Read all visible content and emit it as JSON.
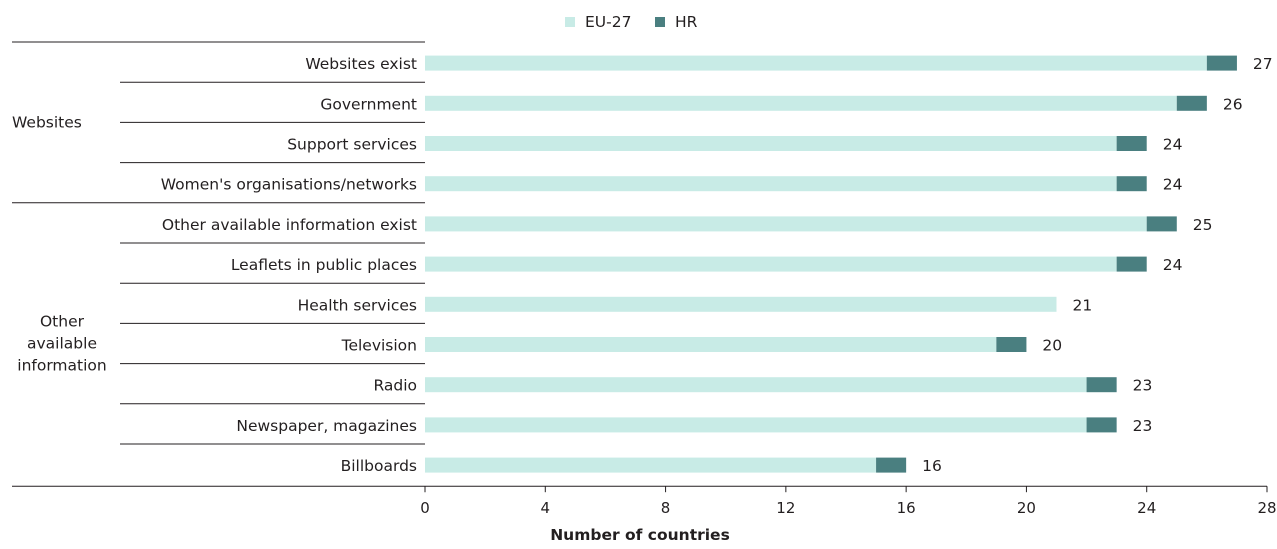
{
  "chart_data": {
    "type": "bar",
    "orientation": "horizontal",
    "stacked": true,
    "xlabel": "Number of countries",
    "xlim": [
      0,
      28
    ],
    "xticks": [
      0,
      4,
      8,
      12,
      16,
      20,
      24,
      28
    ],
    "legend_position": "top-center",
    "groups": [
      {
        "label": "Websites",
        "categories": [
          "Websites exist",
          "Government",
          "Support services",
          "Women's organisations/networks"
        ]
      },
      {
        "label": "Other\navailable\ninformation",
        "categories": [
          "Other available information exist",
          "Leaflets in public places",
          "Health services",
          "Television",
          "Radio",
          "Newspaper, magazines",
          "Billboards"
        ]
      }
    ],
    "categories": [
      "Websites exist",
      "Government",
      "Support services",
      "Women's organisations/networks",
      "Other available information exist",
      "Leaflets in public places",
      "Health services",
      "Television",
      "Radio",
      "Newspaper, magazines",
      "Billboards"
    ],
    "series": [
      {
        "name": "EU-27",
        "color": "#c8ebe6",
        "values": [
          26,
          25,
          23,
          23,
          24,
          23,
          21,
          19,
          22,
          22,
          15
        ]
      },
      {
        "name": "HR",
        "color": "#4a7f80",
        "values": [
          1,
          1,
          1,
          1,
          1,
          1,
          0,
          1,
          1,
          1,
          1
        ]
      }
    ],
    "totals": [
      27,
      26,
      24,
      24,
      25,
      24,
      21,
      20,
      23,
      23,
      16
    ]
  }
}
